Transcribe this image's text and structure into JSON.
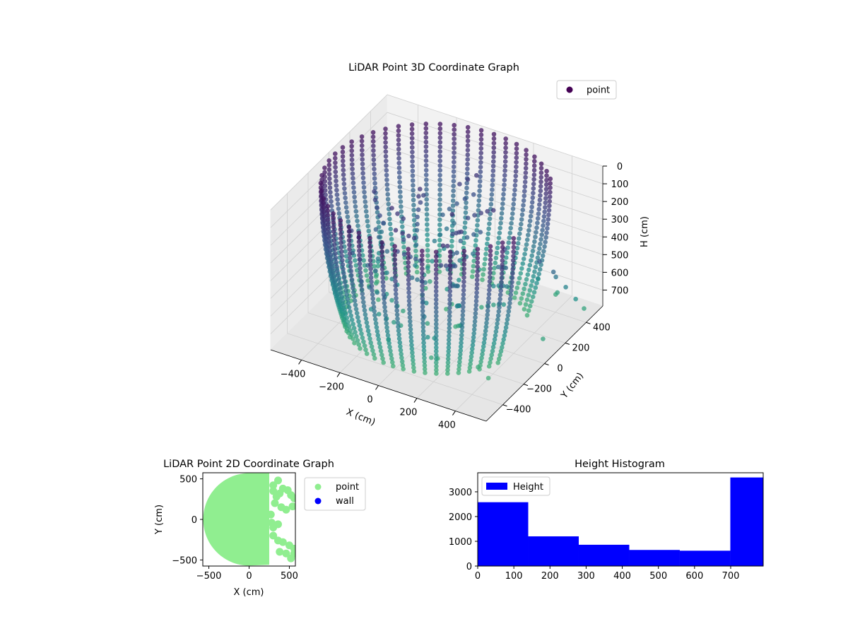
{
  "chart_data": [
    {
      "type": "scatter",
      "projection": "3d",
      "title": "LiDAR Point 3D Coordinate Graph",
      "xlabel": "X (cm)",
      "ylabel": "Y (cm)",
      "zlabel": "H (cm)",
      "xlim": [
        -560,
        560
      ],
      "ylim": [
        -560,
        560
      ],
      "zlim": [
        790,
        0
      ],
      "z_inverted": true,
      "xticks": [
        "−400",
        "−200",
        "0",
        "200",
        "400"
      ],
      "yticks": [
        "−400",
        "−200",
        "0",
        "200",
        "400"
      ],
      "zticks": [
        "0",
        "100",
        "200",
        "300",
        "400",
        "500",
        "600",
        "700"
      ],
      "colormap": "viridis",
      "legend": {
        "labels": [
          "point"
        ],
        "position": "top-right"
      },
      "series": [
        {
          "name": "point",
          "marker_color": "#440154",
          "description_of_shape": "points on a cylindrical wall of radius ~530 cm, heights 0-780 cm, open toward +X, with an inner ring of points",
          "rings": {
            "radius": 530,
            "theta_min_deg": 40,
            "theta_max_deg": 340,
            "h_min": 0,
            "h_max": 760
          },
          "outliers": [
            {
              "x": 480,
              "y": 100,
              "h": 300
            },
            {
              "x": 520,
              "y": 160,
              "h": 380
            },
            {
              "x": 500,
              "y": 220,
              "h": 450
            },
            {
              "x": 530,
              "y": 260,
              "h": 520
            },
            {
              "x": 560,
              "y": 300,
              "h": 600
            },
            {
              "x": 560,
              "y": 380,
              "h": 700
            },
            {
              "x": 400,
              "y": 420,
              "h": 690
            },
            {
              "x": 380,
              "y": 440,
              "h": 720
            },
            {
              "x": 300,
              "y": 420,
              "h": 650
            },
            {
              "x": 350,
              "y": -250,
              "h": 740
            },
            {
              "x": 420,
              "y": -280,
              "h": 760
            },
            {
              "x": 520,
              "y": 60,
              "h": 700
            }
          ]
        }
      ]
    },
    {
      "type": "scatter",
      "title": "LiDAR Point 2D Coordinate Graph",
      "xlabel": "X (cm)",
      "ylabel": "Y (cm)",
      "xlim": [
        -575,
        575
      ],
      "ylim": [
        -575,
        575
      ],
      "xticks": [
        "−500",
        "0",
        "500"
      ],
      "yticks": [
        "−500",
        "0",
        "500"
      ],
      "legend": {
        "labels": [
          "point",
          "wall"
        ],
        "position": "outside-right"
      },
      "series": [
        {
          "name": "point",
          "color": "#90ee90",
          "region": "filled disk of radius ~570 cm, truncated at x ≈ 250 cm, with a cluster of points reaching to x ≈ 560 cm"
        },
        {
          "name": "wall",
          "color": "#0000ff",
          "points": []
        }
      ]
    },
    {
      "type": "bar",
      "subtype": "histogram",
      "title": "Height Histogram",
      "xlabel": "",
      "ylabel": "",
      "bin_edges": [
        0,
        139.8,
        279.6,
        419.4,
        559.2,
        699,
        790
      ],
      "values": [
        2580,
        1200,
        860,
        650,
        620,
        3580
      ],
      "xlim": [
        0,
        790
      ],
      "ylim": [
        0,
        3770
      ],
      "xticks": [
        "0",
        "100",
        "200",
        "300",
        "400",
        "500",
        "600",
        "700"
      ],
      "yticks": [
        "0",
        "1000",
        "2000",
        "3000"
      ],
      "color": "#0000ff",
      "legend": {
        "labels": [
          "Height"
        ],
        "position": "top-left"
      }
    }
  ]
}
